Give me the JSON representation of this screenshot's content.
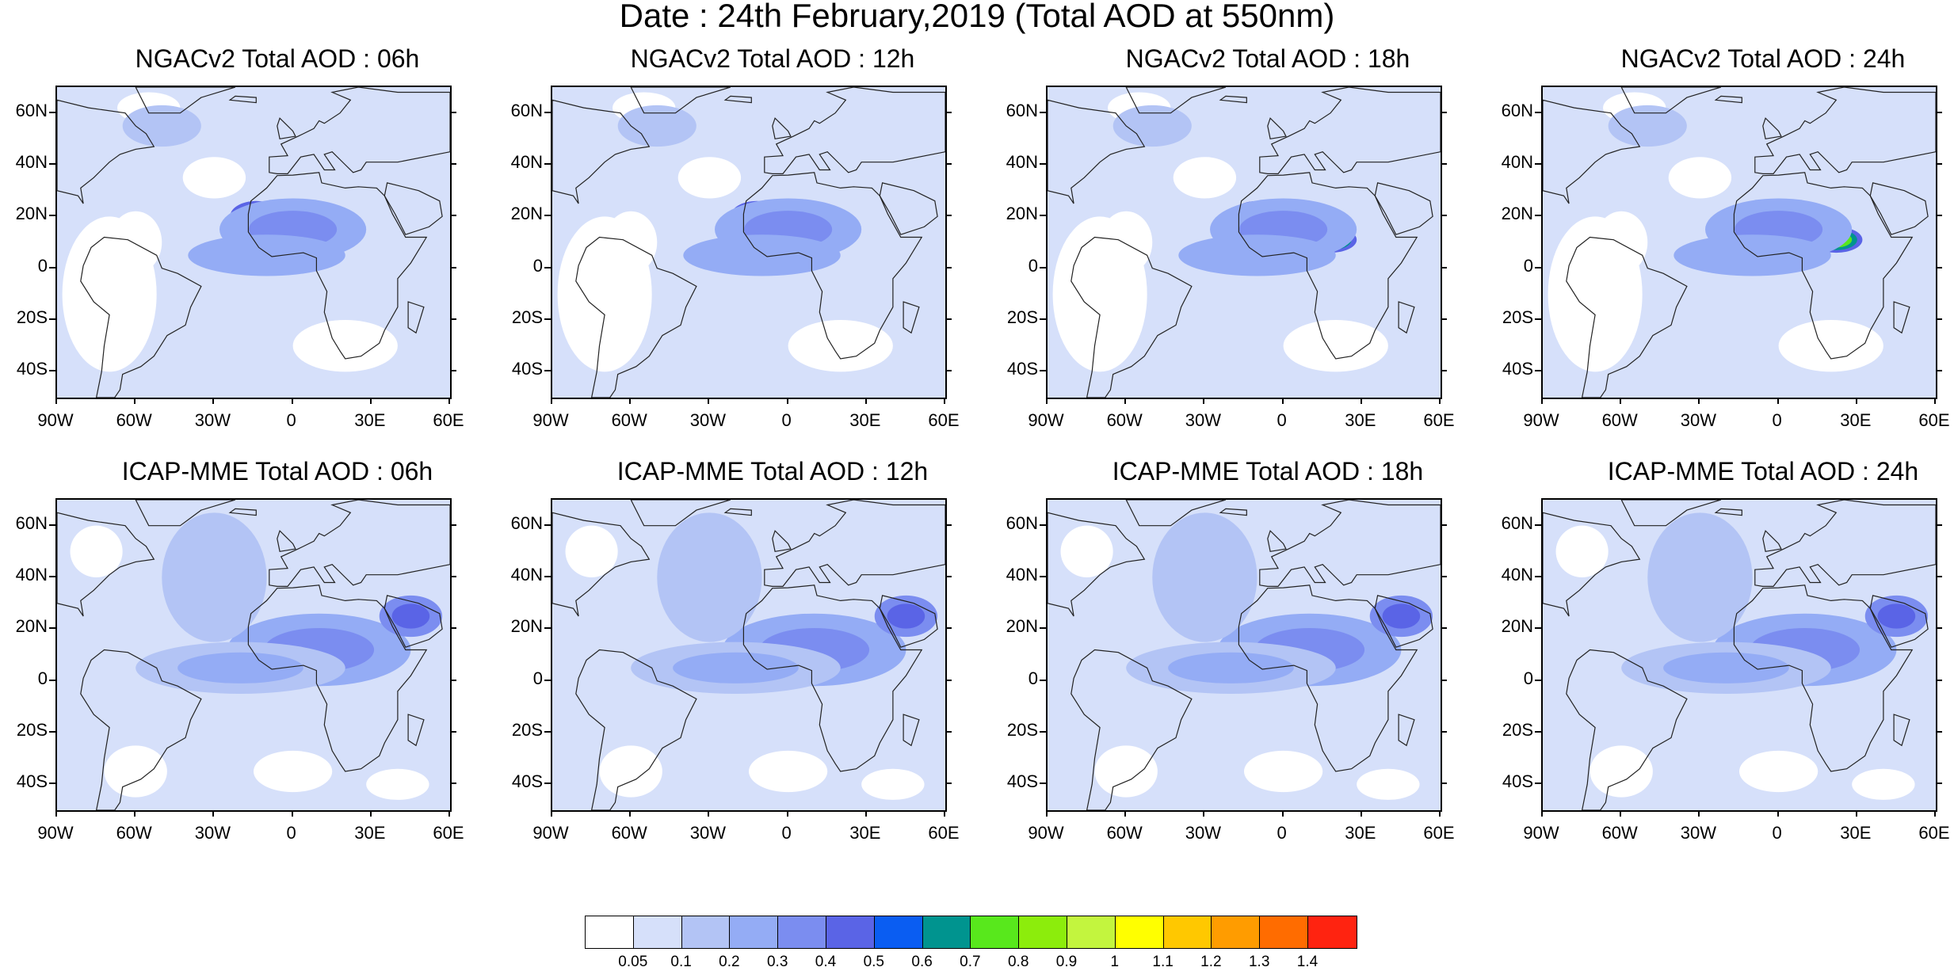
{
  "title": "Date : 24th February,2019 (Total AOD at 550nm)",
  "panels": [
    {
      "title": "NGACv2 Total AOD : 06h",
      "model": "NGACv2",
      "hour": "06h"
    },
    {
      "title": "NGACv2 Total AOD : 12h",
      "model": "NGACv2",
      "hour": "12h"
    },
    {
      "title": "NGACv2 Total AOD : 18h",
      "model": "NGACv2",
      "hour": "18h"
    },
    {
      "title": "NGACv2 Total AOD : 24h",
      "model": "NGACv2",
      "hour": "24h"
    },
    {
      "title": "ICAP-MME Total AOD : 06h",
      "model": "ICAP-MME",
      "hour": "06h"
    },
    {
      "title": "ICAP-MME Total AOD : 12h",
      "model": "ICAP-MME",
      "hour": "12h"
    },
    {
      "title": "ICAP-MME Total AOD : 18h",
      "model": "ICAP-MME",
      "hour": "18h"
    },
    {
      "title": "ICAP-MME Total AOD : 24h",
      "model": "ICAP-MME",
      "hour": "24h"
    }
  ],
  "axes": {
    "lat_labels": [
      "60N",
      "40N",
      "20N",
      "0",
      "20S",
      "40S"
    ],
    "lon_labels": [
      "90W",
      "60W",
      "30W",
      "0",
      "30E",
      "60E"
    ]
  },
  "colorbar": {
    "colors": [
      "#ffffff",
      "#d6e0fa",
      "#b3c4f5",
      "#94acf5",
      "#7b8df0",
      "#5a64e6",
      "#0a5df2",
      "#00948f",
      "#58e81c",
      "#8ced0c",
      "#c3f53e",
      "#ffff00",
      "#ffc800",
      "#ff9c00",
      "#ff6c00",
      "#ff2310"
    ],
    "labels": [
      "0.05",
      "0.1",
      "0.2",
      "0.3",
      "0.4",
      "0.5",
      "0.6",
      "0.7",
      "0.8",
      "0.9",
      "1",
      "1.1",
      "1.2",
      "1.3",
      "1.4"
    ]
  }
}
